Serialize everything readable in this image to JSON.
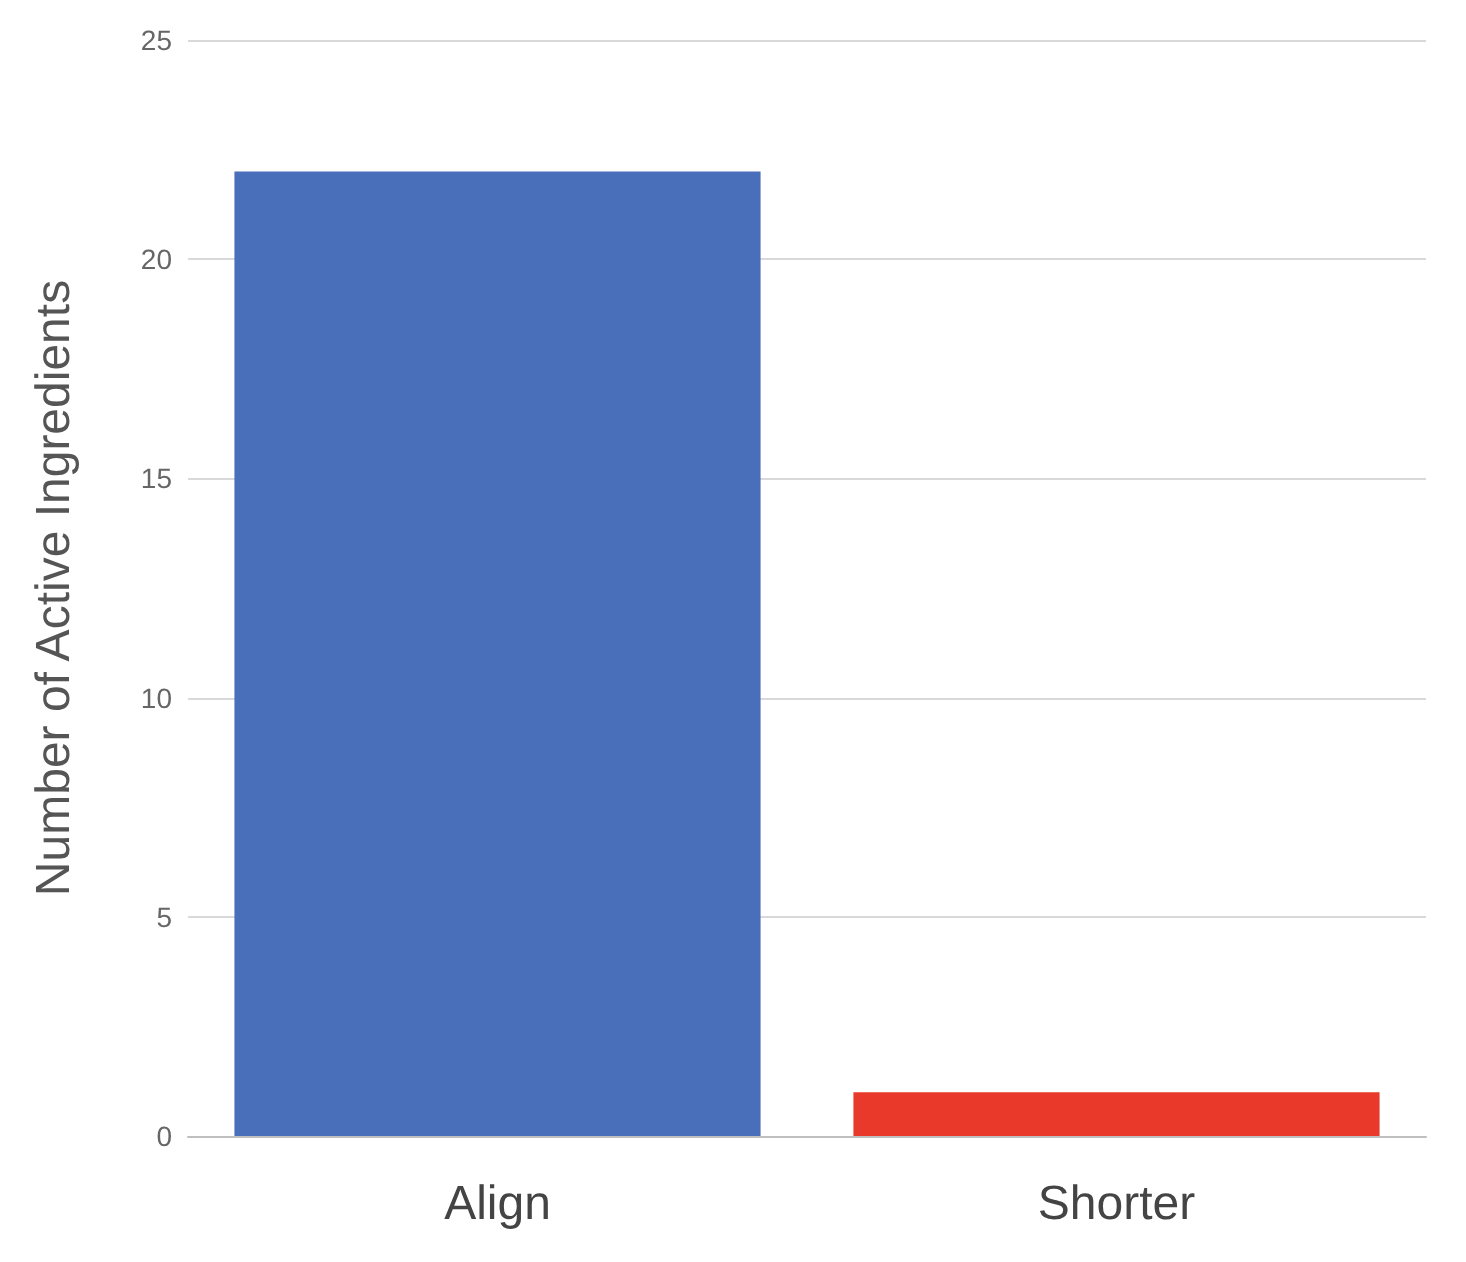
{
  "chart_data": {
    "type": "bar",
    "ylabel": "Number of Active Ingredients",
    "categories": [
      "Align",
      "Shorter"
    ],
    "values": [
      22,
      1
    ],
    "colors": [
      "#4a6fba",
      "#e8392a"
    ],
    "ylim": [
      0,
      25
    ],
    "yticks": [
      0,
      5,
      10,
      15,
      20,
      25
    ],
    "grid": "y"
  }
}
